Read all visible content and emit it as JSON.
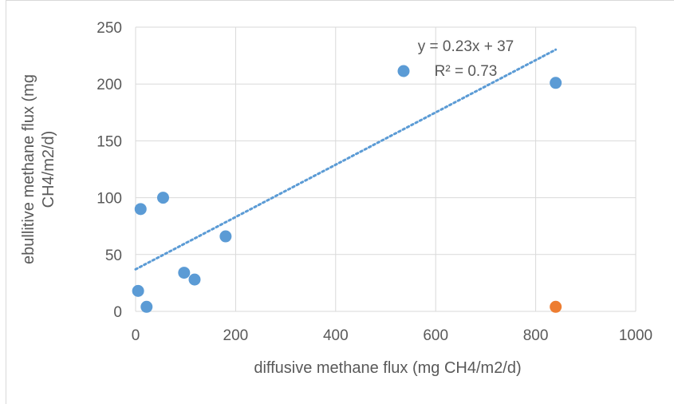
{
  "chart_data": {
    "type": "scatter",
    "title": "",
    "xlabel": "diffusive methane flux (mg CH4/m2/d)",
    "ylabel_lines": [
      "ebullitive methane flux (mg",
      "CH4/m2/d)"
    ],
    "xlim": [
      0,
      1000
    ],
    "ylim": [
      0,
      250
    ],
    "x_ticks": [
      0,
      200,
      400,
      600,
      800,
      1000
    ],
    "y_ticks": [
      0,
      50,
      100,
      150,
      200,
      250
    ],
    "x_tick_labels": [
      "0",
      "200",
      "400",
      "600",
      "800",
      "1000"
    ],
    "y_tick_labels": [
      "0",
      "50",
      "100",
      "150",
      "200",
      "250"
    ],
    "grid": true,
    "series": [
      {
        "color": "#5b9bd5",
        "points": [
          {
            "x": 5,
            "y": 18
          },
          {
            "x": 22,
            "y": 4
          },
          {
            "x": 10,
            "y": 90
          },
          {
            "x": 55,
            "y": 100
          },
          {
            "x": 97,
            "y": 34
          },
          {
            "x": 118,
            "y": 28
          },
          {
            "x": 180,
            "y": 66
          },
          {
            "x": 840,
            "y": 201
          }
        ]
      },
      {
        "color": "#ed7d31",
        "points": [
          {
            "x": 840,
            "y": 4
          }
        ]
      }
    ],
    "trendline": {
      "color": "#5b9bd5",
      "slope": 0.23,
      "intercept": 37,
      "x_range": [
        0,
        840
      ],
      "equation": "y = 0.23x + 37",
      "r_squared": "R² = 0.73"
    },
    "legend_marker": {
      "color": "#5b9bd5"
    }
  }
}
